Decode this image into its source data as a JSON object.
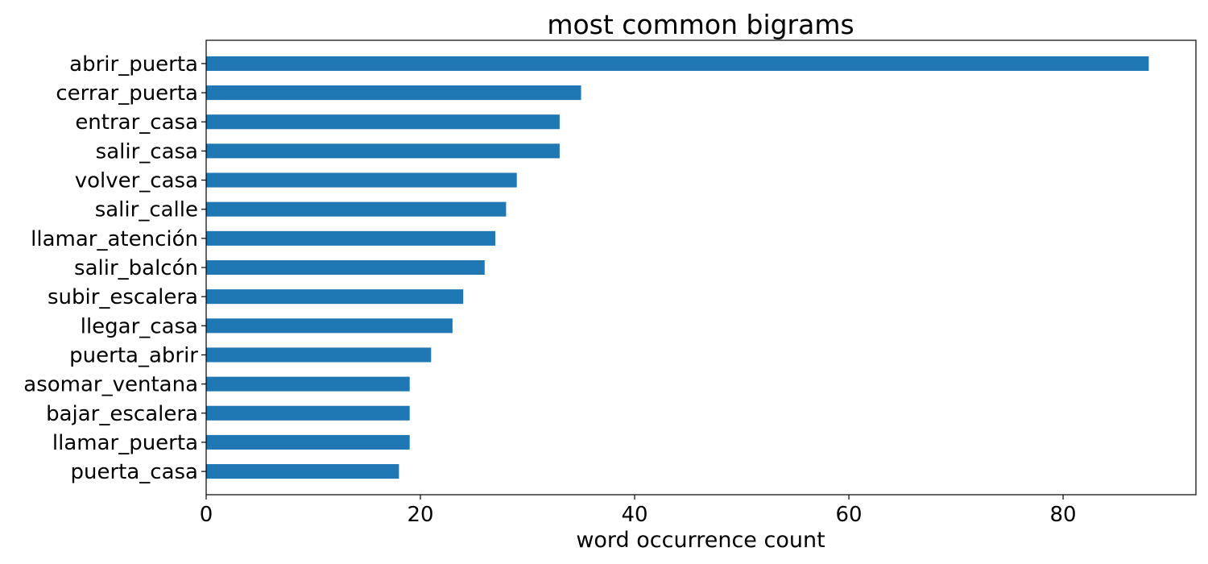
{
  "chart_data": {
    "type": "bar",
    "orientation": "horizontal",
    "title": "most common bigrams",
    "xlabel": "word occurrence count",
    "ylabel": "",
    "categories": [
      "abrir_puerta",
      "cerrar_puerta",
      "entrar_casa",
      "salir_casa",
      "volver_casa",
      "salir_calle",
      "llamar_atención",
      "salir_balcón",
      "subir_escalera",
      "llegar_casa",
      "puerta_abrir",
      "asomar_ventana",
      "bajar_escalera",
      "llamar_puerta",
      "puerta_casa"
    ],
    "values": [
      88,
      35,
      33,
      33,
      29,
      28,
      27,
      26,
      24,
      23,
      21,
      19,
      19,
      19,
      18
    ],
    "xlim": [
      0,
      92.4
    ],
    "xticks": [
      0,
      20,
      40,
      60,
      80
    ],
    "bar_color": "#1f77b4",
    "grid": false,
    "legend": "none"
  }
}
